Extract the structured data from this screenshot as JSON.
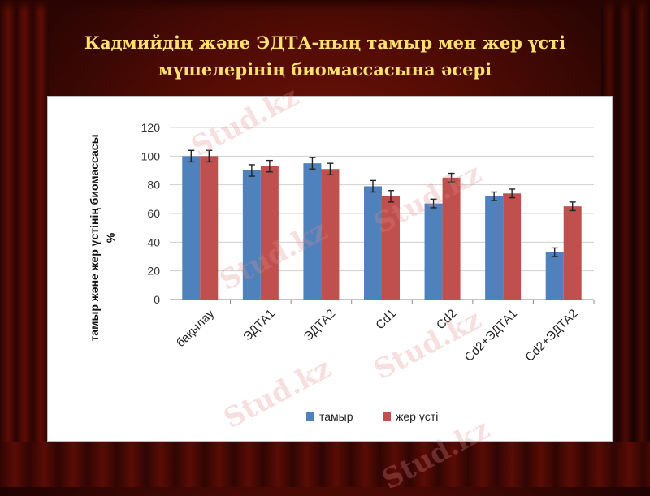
{
  "title_lines": [
    "Кадмийдің және ЭДТА-ның  тамыр мен жер үсті",
    "мүшелерінің биомассасына әсері"
  ],
  "watermark": "Stud.kz",
  "colors": {
    "series1": "#4f81bd",
    "series2": "#c0504d",
    "title": "#ffe070"
  },
  "chart_data": {
    "type": "bar",
    "title": "",
    "xlabel": "",
    "ylabel_lines": [
      "тамыр және жер үстінің биомассасы",
      "%"
    ],
    "ylim": [
      0,
      120
    ],
    "yticks": [
      0,
      20,
      40,
      60,
      80,
      100,
      120
    ],
    "grid": true,
    "legend_position": "bottom",
    "error_bars": true,
    "categories": [
      "бақылау",
      "ЭДТА1",
      "ЭДТА2",
      "Cd1",
      "Cd2",
      "Cd2+ЭДТА1",
      "Cd2+ЭДТА2"
    ],
    "series": [
      {
        "name": "тамыр",
        "values": [
          100,
          90,
          95,
          79,
          67,
          72,
          33
        ],
        "errors": [
          4,
          4,
          4,
          4,
          3,
          3,
          3
        ]
      },
      {
        "name": "жер үсті",
        "values": [
          100,
          93,
          91,
          72,
          85,
          74,
          65
        ],
        "errors": [
          4,
          4,
          4,
          4,
          3,
          3,
          3
        ]
      }
    ]
  }
}
